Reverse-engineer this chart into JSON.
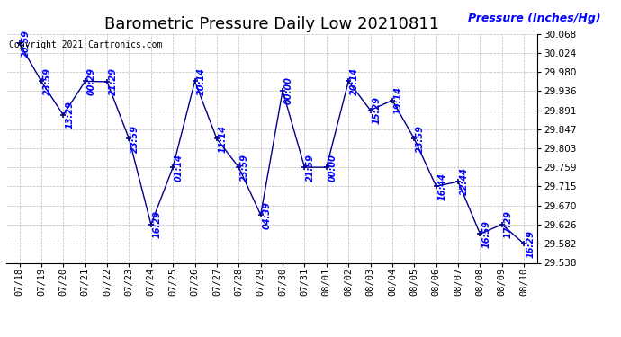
{
  "title": "Barometric Pressure Daily Low 20210811",
  "ylabel": "Pressure (Inches/Hg)",
  "copyright": "Copyright 2021 Cartronics.com",
  "line_color": "#00008B",
  "marker_color": "#00008B",
  "label_color": "#0000FF",
  "background_color": "#FFFFFF",
  "grid_color": "#BBBBBB",
  "xlabels": [
    "07/18",
    "07/19",
    "07/20",
    "07/21",
    "07/22",
    "07/23",
    "07/24",
    "07/25",
    "07/26",
    "07/27",
    "07/28",
    "07/29",
    "07/30",
    "07/31",
    "08/01",
    "08/02",
    "08/03",
    "08/04",
    "08/05",
    "08/06",
    "08/07",
    "08/08",
    "08/09",
    "08/10"
  ],
  "time_labels": [
    "20:59",
    "23:59",
    "13:29",
    "00:29",
    "21:29",
    "23:59",
    "16:29",
    "01:14",
    "20:14",
    "11:14",
    "23:59",
    "04:39",
    "00:00",
    "21:59",
    "00:00",
    "20:14",
    "15:29",
    "19:14",
    "23:59",
    "16:44",
    "22:44",
    "16:59",
    "17:29",
    "16:29"
  ],
  "values": [
    30.046,
    29.958,
    29.88,
    29.958,
    29.957,
    29.825,
    29.627,
    29.759,
    29.958,
    29.825,
    29.759,
    29.649,
    29.936,
    29.759,
    29.759,
    29.958,
    29.891,
    29.914,
    29.825,
    29.715,
    29.726,
    29.605,
    29.627,
    29.582
  ],
  "ylim_min": 29.538,
  "ylim_max": 30.068,
  "yticks": [
    29.538,
    29.582,
    29.626,
    29.67,
    29.715,
    29.759,
    29.803,
    29.847,
    29.891,
    29.936,
    29.98,
    30.024,
    30.068
  ],
  "title_fontsize": 13,
  "tick_fontsize": 7.5,
  "time_label_fontsize": 7,
  "ylabel_fontsize": 9,
  "copyright_fontsize": 7
}
